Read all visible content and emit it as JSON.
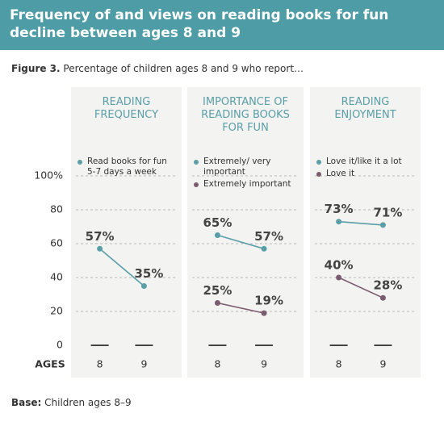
{
  "title": "Frequency of and views on reading books for fun decline between ages 8 and 9",
  "figure_label": "Figure 3.",
  "figure_caption": "Percentage of children ages 8 and 9 who report…",
  "base_label": "Base:",
  "base_text": "Children ages 8–9",
  "chart_data": [
    {
      "type": "line",
      "title": "READING FREQUENCY",
      "xlabel": "AGES",
      "categories": [
        "8",
        "9"
      ],
      "ylim": [
        0,
        100
      ],
      "yticks": [
        0,
        20,
        40,
        60,
        80,
        {
          "value": 100,
          "label": "100%"
        }
      ],
      "grid": true,
      "series": [
        {
          "name": "Read books for fun 5-7 days a week",
          "color": "#5a9ea7",
          "values": [
            57,
            35
          ],
          "value_labels": [
            "57%",
            "35%"
          ]
        }
      ]
    },
    {
      "type": "line",
      "title": "IMPORTANCE OF READING BOOKS FOR FUN",
      "categories": [
        "8",
        "9"
      ],
      "ylim": [
        0,
        100
      ],
      "series": [
        {
          "name": "Extremely/ very important",
          "color": "#5a9ea7",
          "values": [
            65,
            57
          ],
          "value_labels": [
            "65%",
            "57%"
          ]
        },
        {
          "name": "Extremely important",
          "color": "#7b5b6f",
          "values": [
            25,
            19
          ],
          "value_labels": [
            "25%",
            "19%"
          ]
        }
      ]
    },
    {
      "type": "line",
      "title": "READING ENJOYMENT",
      "categories": [
        "8",
        "9"
      ],
      "ylim": [
        0,
        100
      ],
      "series": [
        {
          "name": "Love it/like it a lot",
          "color": "#5a9ea7",
          "values": [
            73,
            71
          ],
          "value_labels": [
            "73%",
            "71%"
          ]
        },
        {
          "name": "Love it",
          "color": "#7b5b6f",
          "values": [
            40,
            28
          ],
          "value_labels": [
            "40%",
            "28%"
          ]
        }
      ]
    }
  ]
}
